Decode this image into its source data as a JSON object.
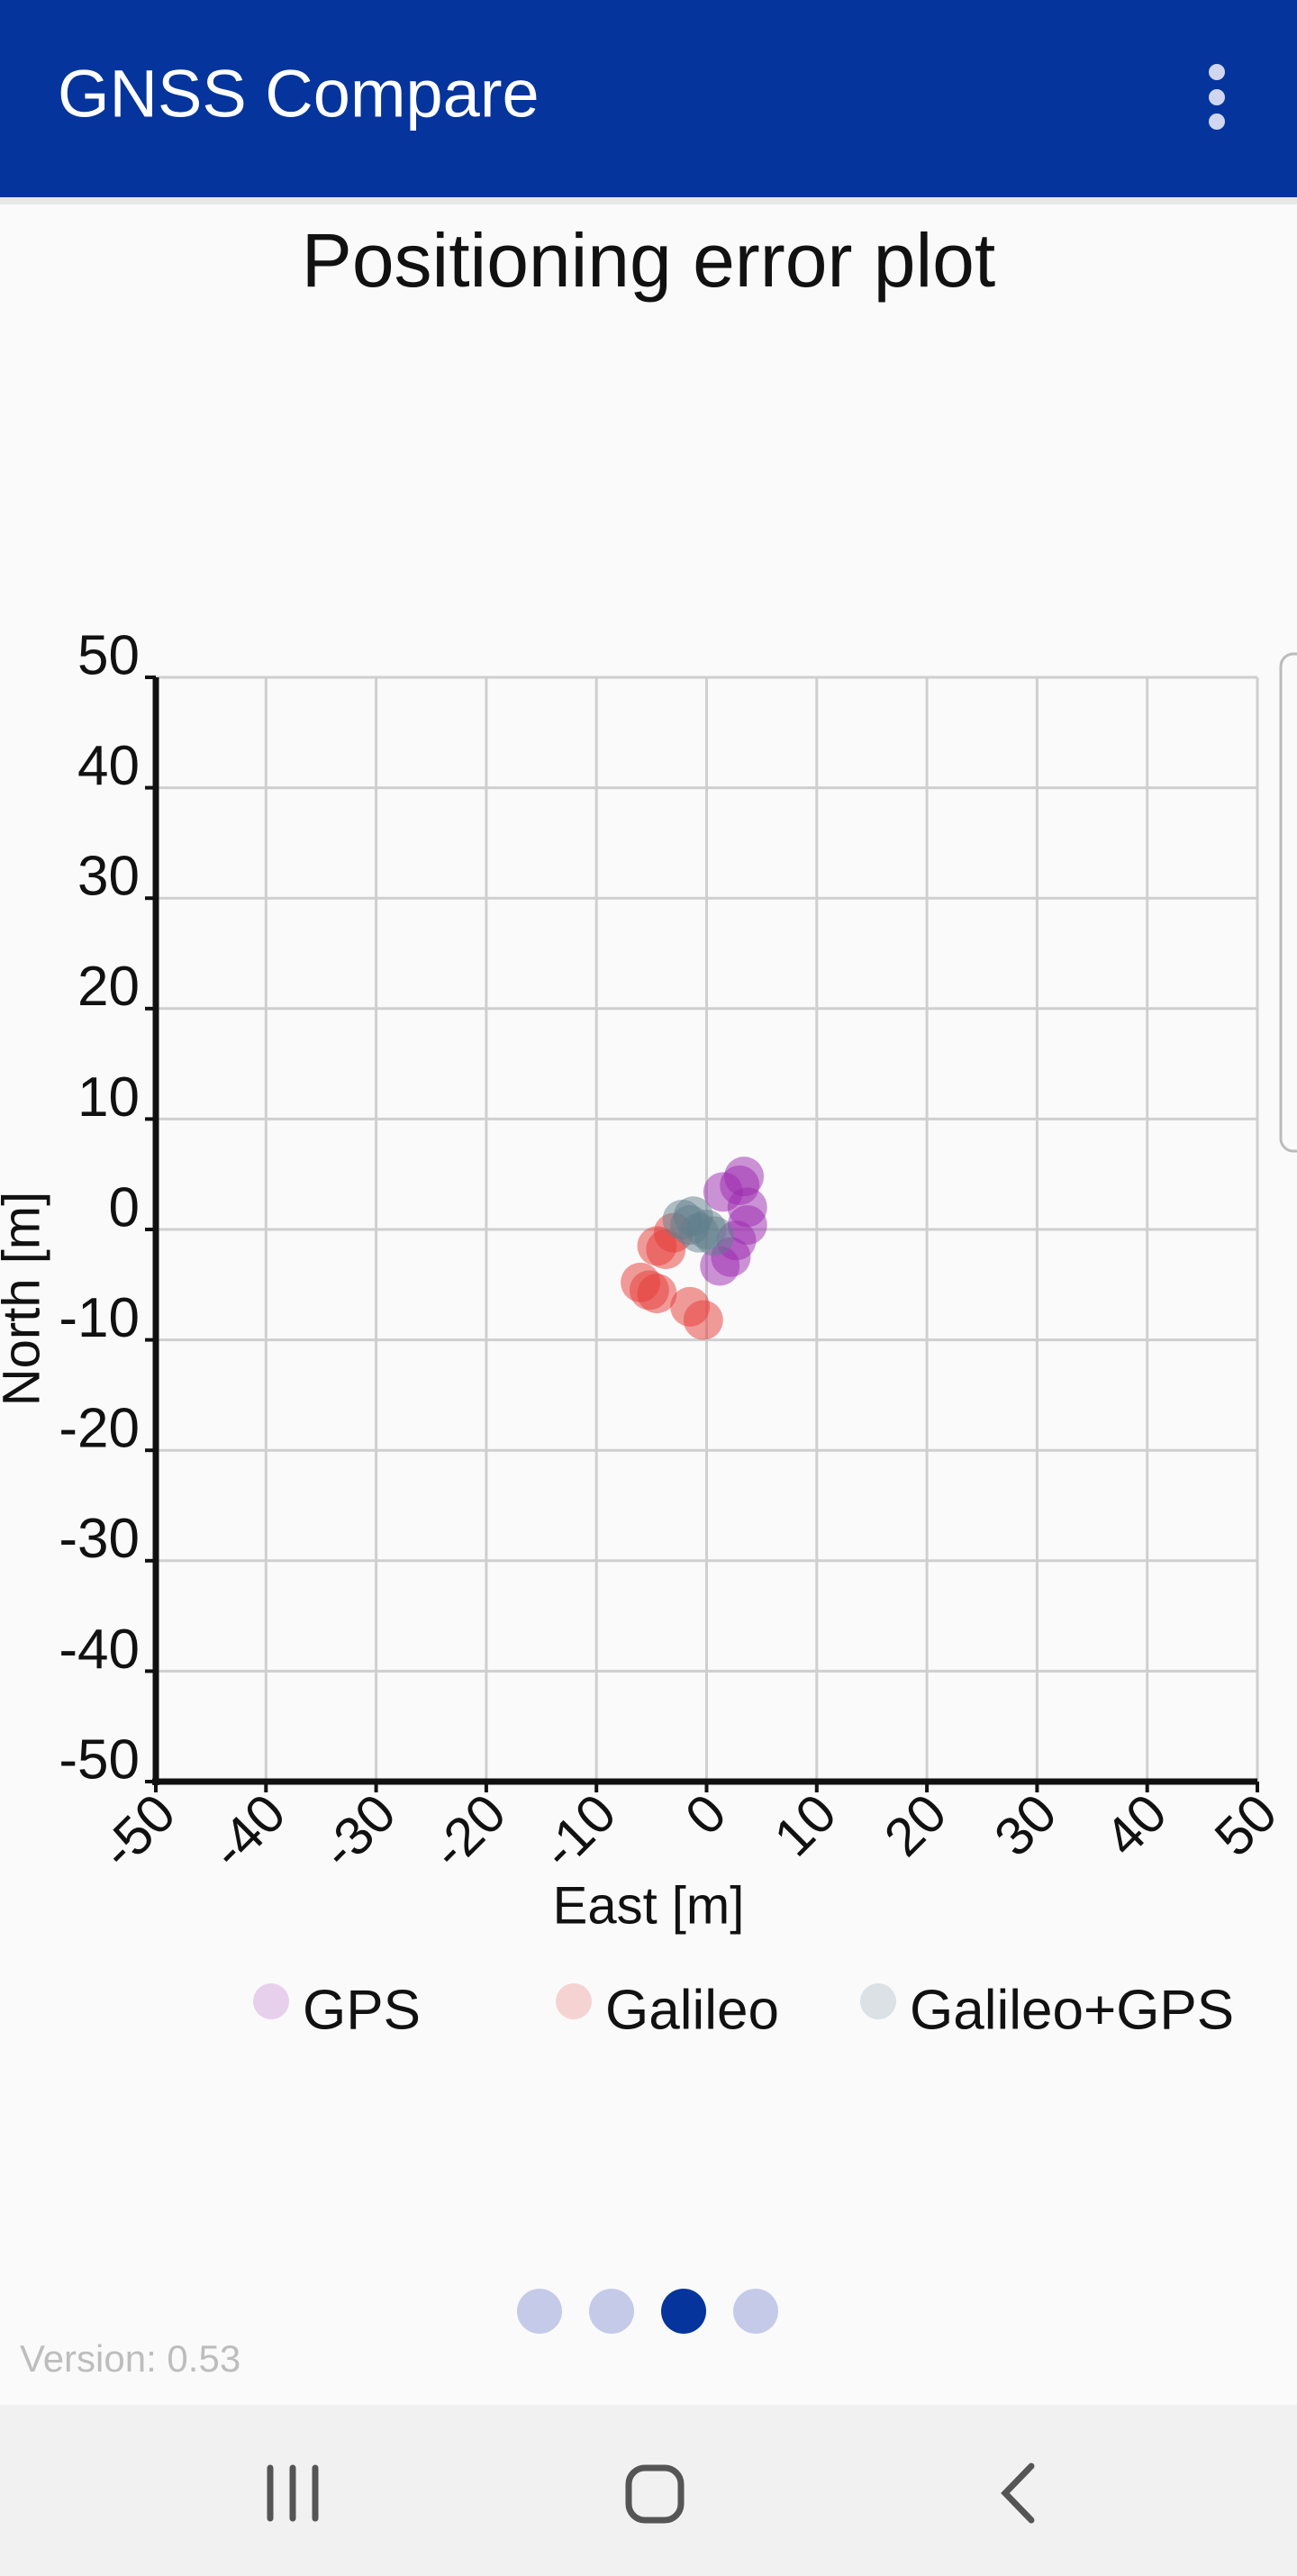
{
  "app_bar": {
    "title": "GNSS Compare"
  },
  "chart_data": {
    "type": "scatter",
    "title": "Positioning error plot",
    "x_label": "East [m]",
    "y_label": "North [m]",
    "xlim": [
      -50,
      50
    ],
    "ylim": [
      -50,
      50
    ],
    "xticks": [
      -50,
      -40,
      -30,
      -20,
      -10,
      0,
      10,
      20,
      30,
      40,
      50
    ],
    "yticks": [
      -50,
      -40,
      -30,
      -20,
      -10,
      0,
      10,
      20,
      30,
      40,
      50
    ],
    "grid": true,
    "legend": "bottom",
    "series": [
      {
        "name": "GPS",
        "color": "#9c27b0",
        "x": [
          3,
          3.7,
          2.2,
          1.5,
          3.4,
          3.7,
          2.7,
          1.2
        ],
        "values": [
          4,
          2,
          -2.5,
          3.4,
          4.8,
          0.4,
          -1,
          -3.3
        ]
      },
      {
        "name": "Galileo",
        "color": "#e53935",
        "x": [
          -5.2,
          -4.5,
          -3.7,
          -3,
          -0.3,
          -1.5,
          -6,
          -4.5
        ],
        "values": [
          -5.5,
          -5.8,
          -1.8,
          -0.3,
          -8.2,
          -7,
          -4.8,
          -1.5
        ]
      },
      {
        "name": "Galileo+GPS",
        "color": "#607d8b",
        "x": [
          -1.5,
          -0.7,
          0,
          -2.2,
          0.7,
          -1.2
        ],
        "values": [
          0.4,
          -0.3,
          0,
          0.9,
          -0.6,
          1.2
        ]
      }
    ]
  },
  "footer": {
    "version": "Version: 0.53"
  }
}
